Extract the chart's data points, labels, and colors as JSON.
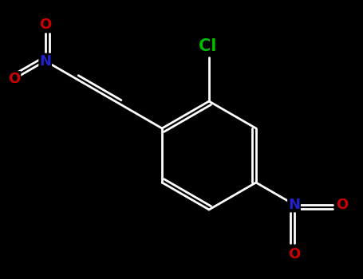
{
  "background_color": "#000000",
  "bond_color": "#ffffff",
  "bond_width": 2.0,
  "cl_color": "#00bb00",
  "n_color": "#2222cc",
  "o_color": "#cc0000",
  "cl_label": "Cl",
  "n_label": "N",
  "o_label": "O",
  "figsize": [
    4.55,
    3.5
  ],
  "dpi": 100,
  "font_size_atom": 14
}
